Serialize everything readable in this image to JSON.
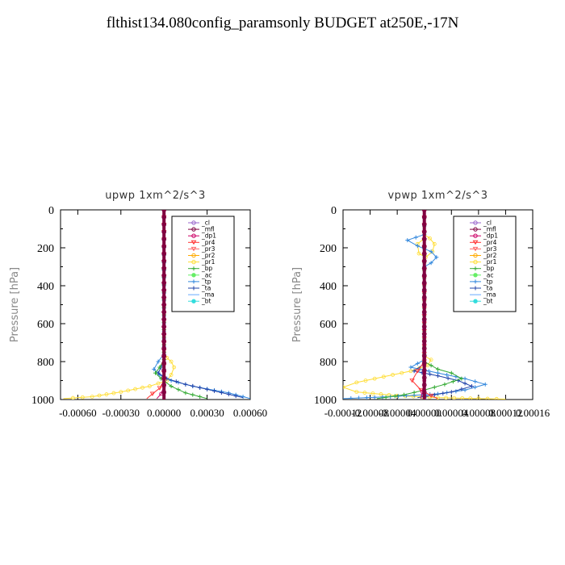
{
  "title": "flthist134.080config_paramsonly  BUDGET at250E,-17N",
  "legend_entries": [
    "_cl",
    "_mfl",
    "_dp1",
    "_pr4",
    "_pr3",
    "_pr2",
    "_pr1",
    "_bp",
    "_ac",
    "_tp",
    "_ta",
    "_ma",
    "_bt"
  ],
  "series_colors": {
    "_cl": "#9966cc",
    "_mfl": "#800040",
    "_dp1": "#cc0066",
    "_pr4": "#ff3333",
    "_pr3": "#ff6666",
    "_pr2": "#ffaa00",
    "_pr1": "#ffdd33",
    "_bp": "#33aa33",
    "_ac": "#66ee66",
    "_tp": "#3388dd",
    "_ta": "#2244aa",
    "_ma": "#66aaff",
    "_bt": "#33dddd"
  },
  "chart_data": [
    {
      "type": "line",
      "title": "upwp   1xm^2/s^3",
      "ylabel": "Pressure [hPa]",
      "xlim": [
        -0.00072,
        0.0006
      ],
      "ylim": [
        1000,
        0
      ],
      "xticks": [
        -0.0006,
        -0.0003,
        0.0,
        0.0003,
        0.0006
      ],
      "xtick_labels": [
        "-0.00060",
        "-0.00030",
        "0.00000",
        "0.00030",
        "0.00060"
      ],
      "yticks": [
        0,
        200,
        400,
        600,
        800,
        1000
      ],
      "ytick_labels": [
        "0",
        "200",
        "400",
        "600",
        "800",
        "1000"
      ],
      "legend": "top-right",
      "series": [
        {
          "name": "_pr1",
          "x": [
            0,
            0,
            2e-05,
            5e-05,
            7e-05,
            5e-05,
            2e-05,
            -0.0001,
            -0.0003,
            -0.0005,
            -0.0007
          ],
          "y": [
            0,
            750,
            780,
            800,
            830,
            870,
            900,
            930,
            960,
            985,
            995
          ]
        },
        {
          "name": "_tp",
          "x": [
            0,
            0,
            -4e-05,
            -7e-05,
            -3e-05,
            5e-05,
            0.0002,
            0.00045,
            0.0006
          ],
          "y": [
            0,
            760,
            800,
            840,
            870,
            900,
            930,
            965,
            995
          ]
        },
        {
          "name": "_ta",
          "x": [
            0,
            0,
            -2e-05,
            -4e-05,
            2e-05,
            0.00015,
            0.00035,
            0.00055
          ],
          "y": [
            0,
            790,
            830,
            860,
            890,
            920,
            955,
            990
          ]
        },
        {
          "name": "_bp",
          "x": [
            0,
            0,
            -3e-05,
            -6e-05,
            -2e-05,
            5e-05,
            0.00015,
            0.0003
          ],
          "y": [
            0,
            790,
            830,
            860,
            890,
            930,
            965,
            995
          ]
        },
        {
          "name": "_pr4",
          "x": [
            0,
            0,
            -3e-05,
            -8e-05,
            -0.00012
          ],
          "y": [
            0,
            900,
            940,
            970,
            995
          ]
        },
        {
          "name": "_dp1",
          "x": [
            0,
            0,
            -2e-05,
            -5e-05
          ],
          "y": [
            0,
            930,
            970,
            995
          ]
        },
        {
          "name": "_mfl",
          "x": [
            0,
            0
          ],
          "y": [
            0,
            1000
          ]
        }
      ]
    },
    {
      "type": "line",
      "title": "vpwp   1xm^2/s^3",
      "ylabel": "Pressure [hPa]",
      "xlim": [
        -0.00012,
        0.00016
      ],
      "ylim": [
        1000,
        0
      ],
      "xticks": [
        -0.00012,
        -8e-05,
        -4e-05,
        0.0,
        4e-05,
        8e-05,
        0.00012,
        0.00016
      ],
      "xtick_labels": [
        "-0.00012",
        "-0.00008",
        "-0.00004",
        "0.00000",
        "0.00004",
        "0.00008",
        "0.00012",
        "0.00016"
      ],
      "yticks": [
        0,
        200,
        400,
        600,
        800,
        1000
      ],
      "ytick_labels": [
        "0",
        "200",
        "400",
        "600",
        "800",
        "1000"
      ],
      "legend": "top-right",
      "series": [
        {
          "name": "_pr1",
          "x": [
            0,
            0,
            8e-06,
            1.5e-05,
            1.2e-05,
            2e-06,
            -8e-06,
            -1e-05,
            0,
            0,
            1e-05,
            5e-06,
            -2e-05,
            -6e-05,
            -0.0001,
            -0.00012,
            -0.0001,
            -4e-05,
            2e-05,
            8e-05,
            0.00012
          ],
          "y": [
            0,
            130,
            150,
            180,
            220,
            250,
            230,
            180,
            150,
            770,
            790,
            820,
            850,
            880,
            910,
            935,
            960,
            980,
            990,
            995,
            998
          ]
        },
        {
          "name": "_tp",
          "x": [
            0,
            0,
            -2.5e-05,
            -1e-05,
            1e-05,
            1.8e-05,
            1e-05,
            0,
            0,
            -2e-05,
            2e-05,
            6e-05,
            9e-05,
            6e-05,
            2e-05,
            -5e-05,
            -0.00012
          ],
          "y": [
            0,
            130,
            160,
            190,
            220,
            250,
            280,
            300,
            790,
            830,
            860,
            890,
            920,
            950,
            970,
            985,
            995
          ]
        },
        {
          "name": "_ta",
          "x": [
            0,
            0,
            -1.5e-05,
            2e-05,
            5e-05,
            7e-05,
            4e-05,
            -1e-05
          ],
          "y": [
            0,
            810,
            850,
            875,
            900,
            930,
            960,
            990
          ]
        },
        {
          "name": "_bp",
          "x": [
            0,
            0,
            2e-05,
            4e-05,
            5.5e-05,
            3e-05,
            0.0,
            -3e-05,
            -7e-05
          ],
          "y": [
            0,
            800,
            840,
            860,
            890,
            920,
            950,
            975,
            995
          ]
        },
        {
          "name": "_pr4",
          "x": [
            0,
            0,
            -1e-05,
            -1.8e-05,
            -5e-06,
            1e-05,
            2e-05
          ],
          "y": [
            0,
            800,
            850,
            900,
            950,
            980,
            995
          ]
        },
        {
          "name": "_dp1",
          "x": [
            0,
            0,
            -3e-06,
            -5e-06
          ],
          "y": [
            0,
            900,
            960,
            995
          ]
        },
        {
          "name": "_mfl",
          "x": [
            0,
            0
          ],
          "y": [
            0,
            1000
          ]
        }
      ]
    }
  ]
}
